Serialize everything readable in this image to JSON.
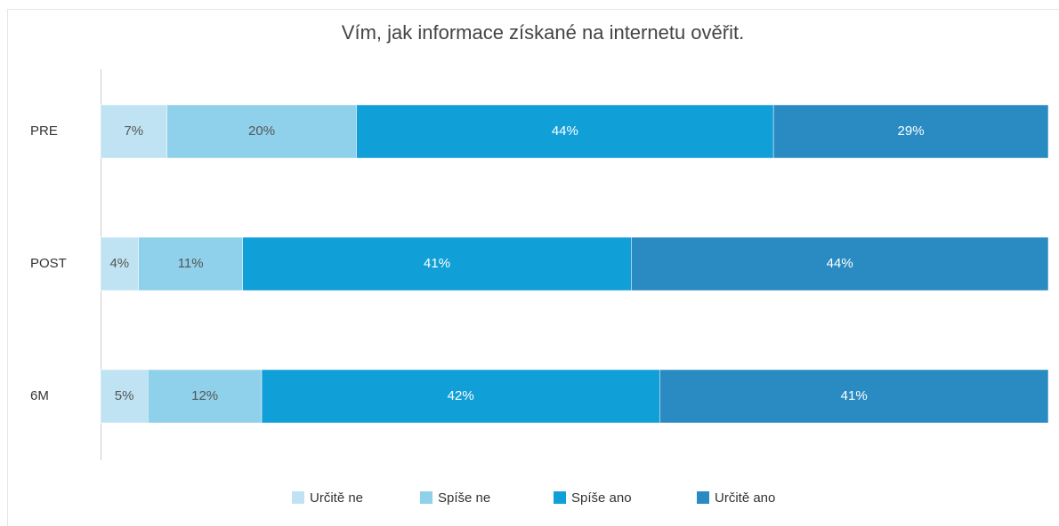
{
  "chart_data": {
    "type": "stacked_bar_horizontal",
    "title": "Vím, jak informace získané na internetu ověřit.",
    "categories": [
      "PRE",
      "POST",
      "6M"
    ],
    "xlim": [
      0,
      100
    ],
    "legend": "bottom",
    "series": [
      {
        "name": "Určitě ne",
        "color": "#bfe3f3",
        "values": [
          7,
          4,
          5
        ],
        "value_labels": [
          "7%",
          "4%",
          "5%"
        ]
      },
      {
        "name": "Spíše ne",
        "color": "#8fd0ea",
        "values": [
          20,
          11,
          12
        ],
        "value_labels": [
          "20%",
          "11%",
          "12%"
        ]
      },
      {
        "name": "Spíše ano",
        "color": "#119fd8",
        "values": [
          44,
          41,
          42
        ],
        "value_labels": [
          "44%",
          "41%",
          "42%"
        ]
      },
      {
        "name": "Určitě ano",
        "color": "#2a8bc2",
        "values": [
          29,
          44,
          41
        ],
        "value_labels": [
          "29%",
          "44%",
          "41%"
        ]
      }
    ]
  }
}
